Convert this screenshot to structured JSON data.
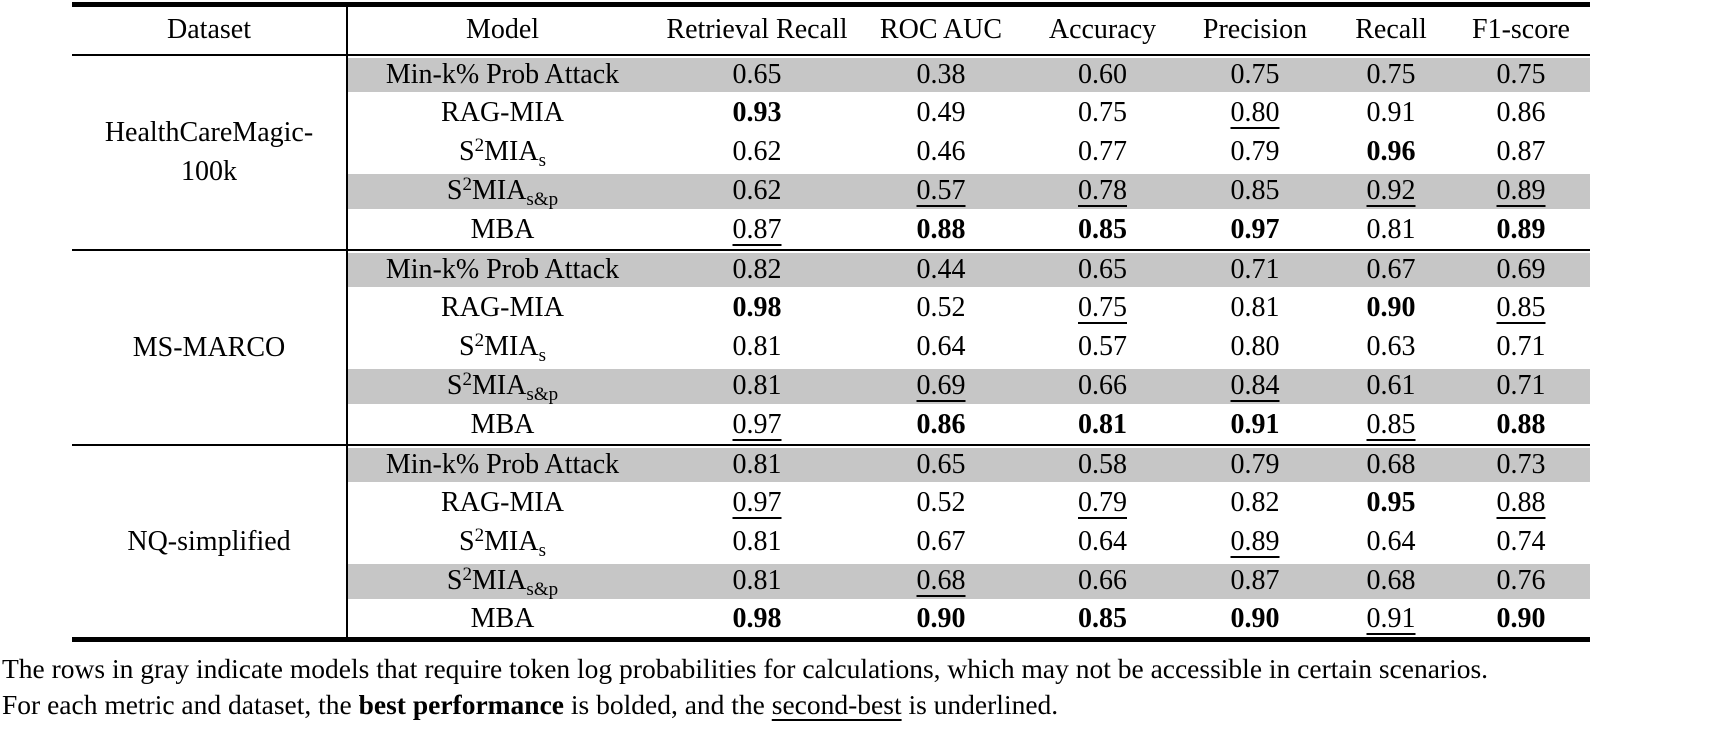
{
  "table": {
    "headers": [
      "Dataset",
      "Model",
      "Retrieval Recall",
      "ROC AUC",
      "Accuracy",
      "Precision",
      "Recall",
      "F1-score"
    ],
    "groups": [
      {
        "dataset": "HealthCareMagic-100k",
        "rows": [
          {
            "model": [
              [
                "Min-k% Prob Attack",
                ""
              ]
            ],
            "gray": true,
            "cells": [
              {
                "v": "0.65"
              },
              {
                "v": "0.38"
              },
              {
                "v": "0.60"
              },
              {
                "v": "0.75"
              },
              {
                "v": "0.75"
              },
              {
                "v": "0.75"
              }
            ]
          },
          {
            "model": [
              [
                "RAG-MIA",
                ""
              ]
            ],
            "gray": false,
            "cells": [
              {
                "v": "0.93",
                "b": true
              },
              {
                "v": "0.49"
              },
              {
                "v": "0.75"
              },
              {
                "v": "0.80",
                "u": true
              },
              {
                "v": "0.91"
              },
              {
                "v": "0.86"
              }
            ]
          },
          {
            "model": [
              [
                "S",
                ""
              ],
              [
                "2",
                "sup"
              ],
              [
                "MIA",
                ""
              ],
              [
                "s",
                "sub"
              ]
            ],
            "gray": false,
            "cells": [
              {
                "v": "0.62"
              },
              {
                "v": "0.46"
              },
              {
                "v": "0.77"
              },
              {
                "v": "0.79"
              },
              {
                "v": "0.96",
                "b": true
              },
              {
                "v": "0.87"
              }
            ]
          },
          {
            "model": [
              [
                "S",
                ""
              ],
              [
                "2",
                "sup"
              ],
              [
                "MIA",
                ""
              ],
              [
                "s&p",
                "sub"
              ]
            ],
            "gray": true,
            "cells": [
              {
                "v": "0.62"
              },
              {
                "v": "0.57",
                "u": true
              },
              {
                "v": "0.78",
                "u": true
              },
              {
                "v": "0.85"
              },
              {
                "v": "0.92",
                "u": true
              },
              {
                "v": "0.89",
                "u": true
              }
            ]
          },
          {
            "model": [
              [
                "MBA",
                ""
              ]
            ],
            "gray": false,
            "cells": [
              {
                "v": "0.87",
                "u": true
              },
              {
                "v": "0.88",
                "b": true
              },
              {
                "v": "0.85",
                "b": true
              },
              {
                "v": "0.97",
                "b": true
              },
              {
                "v": "0.81"
              },
              {
                "v": "0.89",
                "b": true
              }
            ]
          }
        ]
      },
      {
        "dataset": "MS-MARCO",
        "rows": [
          {
            "model": [
              [
                "Min-k% Prob Attack",
                ""
              ]
            ],
            "gray": true,
            "cells": [
              {
                "v": "0.82"
              },
              {
                "v": "0.44"
              },
              {
                "v": "0.65"
              },
              {
                "v": "0.71"
              },
              {
                "v": "0.67"
              },
              {
                "v": "0.69"
              }
            ]
          },
          {
            "model": [
              [
                "RAG-MIA",
                ""
              ]
            ],
            "gray": false,
            "cells": [
              {
                "v": "0.98",
                "b": true
              },
              {
                "v": "0.52"
              },
              {
                "v": "0.75",
                "u": true
              },
              {
                "v": "0.81"
              },
              {
                "v": "0.90",
                "b": true
              },
              {
                "v": "0.85",
                "u": true
              }
            ]
          },
          {
            "model": [
              [
                "S",
                ""
              ],
              [
                "2",
                "sup"
              ],
              [
                "MIA",
                ""
              ],
              [
                "s",
                "sub"
              ]
            ],
            "gray": false,
            "cells": [
              {
                "v": "0.81"
              },
              {
                "v": "0.64"
              },
              {
                "v": "0.57"
              },
              {
                "v": "0.80"
              },
              {
                "v": "0.63"
              },
              {
                "v": "0.71"
              }
            ]
          },
          {
            "model": [
              [
                "S",
                ""
              ],
              [
                "2",
                "sup"
              ],
              [
                "MIA",
                ""
              ],
              [
                "s&p",
                "sub"
              ]
            ],
            "gray": true,
            "cells": [
              {
                "v": "0.81"
              },
              {
                "v": "0.69",
                "u": true
              },
              {
                "v": "0.66"
              },
              {
                "v": "0.84",
                "u": true
              },
              {
                "v": "0.61"
              },
              {
                "v": "0.71"
              }
            ]
          },
          {
            "model": [
              [
                "MBA",
                ""
              ]
            ],
            "gray": false,
            "cells": [
              {
                "v": "0.97",
                "u": true
              },
              {
                "v": "0.86",
                "b": true
              },
              {
                "v": "0.81",
                "b": true
              },
              {
                "v": "0.91",
                "b": true
              },
              {
                "v": "0.85",
                "u": true
              },
              {
                "v": "0.88",
                "b": true
              }
            ]
          }
        ]
      },
      {
        "dataset": "NQ-simplified",
        "rows": [
          {
            "model": [
              [
                "Min-k% Prob Attack",
                ""
              ]
            ],
            "gray": true,
            "cells": [
              {
                "v": "0.81"
              },
              {
                "v": "0.65"
              },
              {
                "v": "0.58"
              },
              {
                "v": "0.79"
              },
              {
                "v": "0.68"
              },
              {
                "v": "0.73"
              }
            ]
          },
          {
            "model": [
              [
                "RAG-MIA",
                ""
              ]
            ],
            "gray": false,
            "cells": [
              {
                "v": "0.97",
                "u": true
              },
              {
                "v": "0.52"
              },
              {
                "v": "0.79",
                "u": true
              },
              {
                "v": "0.82"
              },
              {
                "v": "0.95",
                "b": true
              },
              {
                "v": "0.88",
                "u": true
              }
            ]
          },
          {
            "model": [
              [
                "S",
                ""
              ],
              [
                "2",
                "sup"
              ],
              [
                "MIA",
                ""
              ],
              [
                "s",
                "sub"
              ]
            ],
            "gray": false,
            "cells": [
              {
                "v": "0.81"
              },
              {
                "v": "0.67"
              },
              {
                "v": "0.64"
              },
              {
                "v": "0.89",
                "u": true
              },
              {
                "v": "0.64"
              },
              {
                "v": "0.74"
              }
            ]
          },
          {
            "model": [
              [
                "S",
                ""
              ],
              [
                "2",
                "sup"
              ],
              [
                "MIA",
                ""
              ],
              [
                "s&p",
                "sub"
              ]
            ],
            "gray": true,
            "cells": [
              {
                "v": "0.81"
              },
              {
                "v": "0.68",
                "u": true
              },
              {
                "v": "0.66"
              },
              {
                "v": "0.87"
              },
              {
                "v": "0.68"
              },
              {
                "v": "0.76"
              }
            ]
          },
          {
            "model": [
              [
                "MBA",
                ""
              ]
            ],
            "gray": false,
            "cells": [
              {
                "v": "0.98",
                "b": true
              },
              {
                "v": "0.90",
                "b": true
              },
              {
                "v": "0.85",
                "b": true
              },
              {
                "v": "0.90",
                "b": true
              },
              {
                "v": "0.91",
                "u": true
              },
              {
                "v": "0.90",
                "b": true
              }
            ]
          }
        ]
      }
    ]
  },
  "caption": {
    "lines": [
      [
        [
          "The rows in gray indicate models that require token log probabilities for calculations, which may not be accessible in certain scenarios.",
          ""
        ]
      ],
      [
        [
          "For each metric and dataset, the ",
          ""
        ],
        [
          "best performance",
          "b"
        ],
        [
          " is bolded, and the ",
          ""
        ],
        [
          "second-best",
          "u"
        ],
        [
          " is underlined.",
          ""
        ]
      ]
    ]
  },
  "colors": {
    "gray_row": "#c6c6c6",
    "rule": "#000000"
  }
}
